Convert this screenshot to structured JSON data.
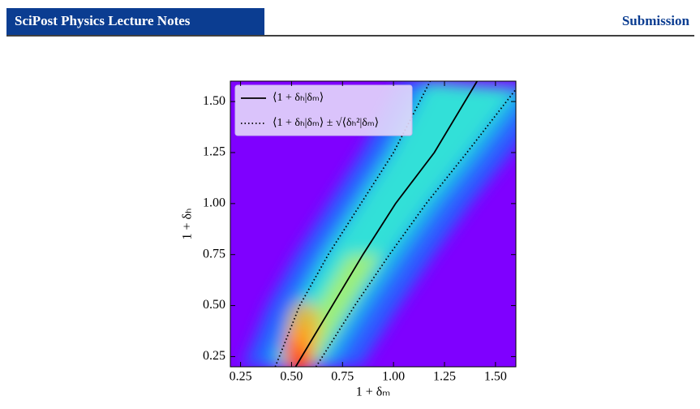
{
  "header": {
    "journal": "SciPost Physics Lecture Notes",
    "status": "Submission"
  },
  "chart_data": {
    "type": "line",
    "xlabel": "1 + δₘ",
    "ylabel": "1 + δₕ",
    "xlim": [
      0.2,
      1.6
    ],
    "ylim": [
      0.2,
      1.6
    ],
    "xticks": [
      0.25,
      {
        "value": 0.5,
        "label": "0.50"
      },
      0.75,
      {
        "value": 1,
        "label": "1.00"
      },
      1.25,
      {
        "value": 1.5,
        "label": "1.50"
      }
    ],
    "yticks": [
      0.25,
      {
        "value": 0.5,
        "label": "0.50"
      },
      0.75,
      {
        "value": 1,
        "label": "1.00"
      },
      1.25,
      {
        "value": 1.5,
        "label": "1.50"
      }
    ],
    "legend": "upper left",
    "series": [
      {
        "name": "⟨1 + δₕ|δₘ⟩",
        "color": "#000000",
        "style": "solid",
        "x": [
          0.52,
          0.7,
          0.85,
          1.01,
          1.2,
          1.41
        ],
        "y": [
          0.2,
          0.5,
          0.75,
          1.0,
          1.25,
          1.6
        ]
      },
      {
        "name": "⟨1 + δₕ|δₘ⟩ ± √⟨δₕ²|δₘ⟩",
        "color": "#000000",
        "style": "dotted",
        "x": [
          0.42,
          0.54,
          0.68,
          0.84,
          1.0,
          1.18
        ],
        "y": [
          0.2,
          0.5,
          0.75,
          1.0,
          1.25,
          1.6
        ]
      },
      {
        "color": "#000000",
        "style": "dotted",
        "x": [
          0.62,
          0.81,
          0.98,
          1.16,
          1.36,
          1.6
        ],
        "y": [
          0.2,
          0.5,
          0.75,
          1.0,
          1.25,
          1.56
        ]
      }
    ]
  }
}
